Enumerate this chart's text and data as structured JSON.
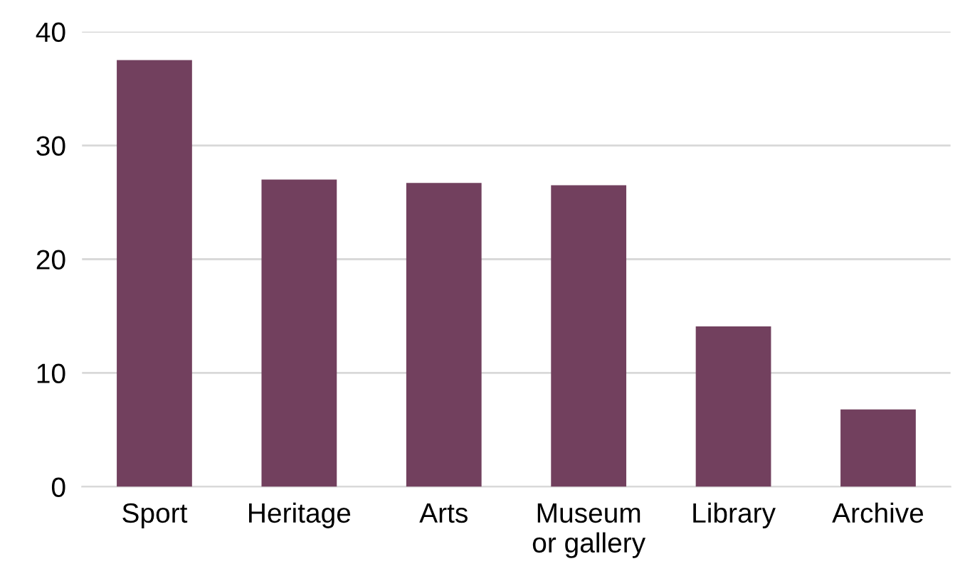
{
  "chart_data": {
    "type": "bar",
    "categories": [
      "Sport",
      "Heritage",
      "Arts",
      "Museum\nor gallery",
      "Library",
      "Archive"
    ],
    "values": [
      37.5,
      27.0,
      26.7,
      26.5,
      14.1,
      6.8
    ],
    "color": "#72405e",
    "ylim": [
      0,
      40
    ],
    "yticks": [
      0,
      10,
      20,
      30,
      40
    ],
    "grid": "y"
  }
}
